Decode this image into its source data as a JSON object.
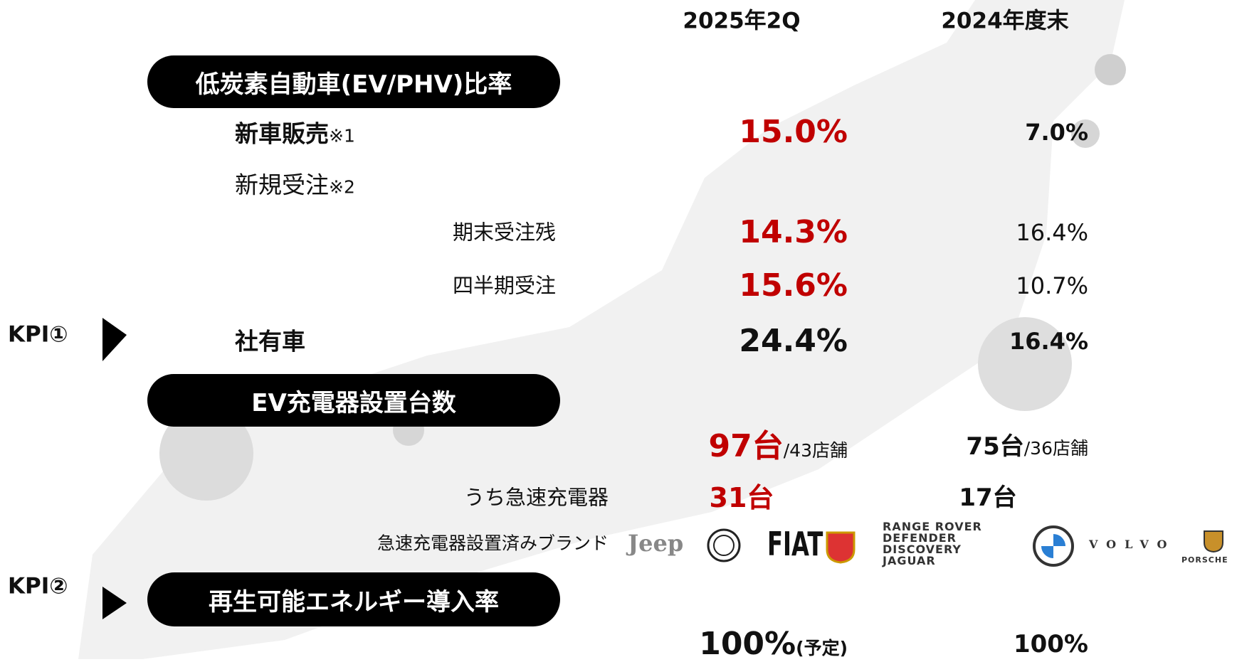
{
  "columns": [
    "2025年2Q",
    "2024年度末"
  ],
  "sections": [
    "低炭素自動車(EV/PHV)比率",
    "EV充電器設置台数",
    "再生可能エネルギー導入率"
  ],
  "rows": [
    {
      "label": "新車販売",
      "note": "※1",
      "current": "15.0%",
      "previous": "7.0%"
    },
    {
      "label": "新規受注",
      "note": "※2"
    },
    {
      "label": "期末受注残",
      "current": "14.3%",
      "previous": "16.4%"
    },
    {
      "label": "四半期受注",
      "current": "15.6%",
      "previous": "10.7%"
    },
    {
      "label": "社有車",
      "current": "24.4%",
      "previous": "16.4%"
    }
  ],
  "kpi": [
    "KPI①",
    "KPI②"
  ],
  "chargers": {
    "current": {
      "count": "97台",
      "stores": "/43店舗"
    },
    "previous": {
      "count": "75台",
      "stores": "/36店舗"
    }
  },
  "fast_chargers": {
    "label": "うち急速充電器",
    "current": "31台",
    "previous": "17台"
  },
  "brands": {
    "label": "急速充電器設置済みブランド",
    "logos": [
      "Jeep",
      "FIAT",
      "RANGE ROVER",
      "DEFENDER",
      "DISCOVERY",
      "JAGUAR",
      "VOLVO",
      "PORSCHE"
    ]
  },
  "renewable": {
    "current": "100%",
    "current_note": "(予定)",
    "previous": "100%"
  }
}
